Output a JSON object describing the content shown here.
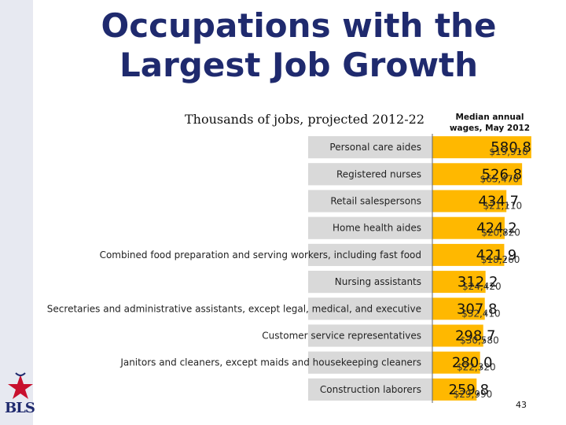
{
  "header": {
    "title_line1": "Occupations with the",
    "title_line2": "Largest Job Growth",
    "subtitle": "Thousands of jobs, projected 2012-22",
    "wage_header_line1": "Median annual",
    "wage_header_line2": "wages, May 2012"
  },
  "chart_data": {
    "type": "bar",
    "orientation": "horizontal",
    "title": "Occupations with the Largest Job Growth",
    "subtitle": "Thousands of jobs, projected 2012-22",
    "categories": [
      "Personal care aides",
      "Registered nurses",
      "Retail salespersons",
      "Home health aides",
      "Combined food preparation and serving workers, including fast food",
      "Nursing assistants",
      "Secretaries and administrative assistants, except legal, medical, and executive",
      "Customer service representatives",
      "Janitors and cleaners, except maids and housekeeping cleaners",
      "Construction laborers"
    ],
    "values": [
      580.8,
      526.8,
      434.7,
      424.2,
      421.9,
      312.2,
      307.8,
      298.7,
      280.0,
      259.8
    ],
    "value_labels": [
      "580,8",
      "526,8",
      "434,7",
      "424,2",
      "421,9",
      "312,2",
      "307,8",
      "298,7",
      "280,0",
      "259,8"
    ],
    "wage_labels": [
      "$19,910",
      "$65,470",
      "$21,110",
      "$20,820",
      "$18,260",
      "$24,420",
      "$32,410",
      "$30,580",
      "$22,320",
      "$29,990"
    ],
    "xlim": [
      0,
      600
    ],
    "grid": false,
    "bar_color": "#ffb800"
  },
  "footer": {
    "page_number": "43",
    "logo_text": "BLS"
  }
}
